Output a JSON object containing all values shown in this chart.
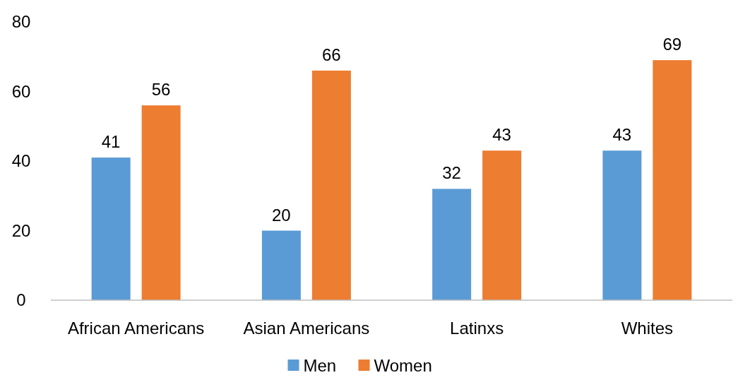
{
  "chart_data": {
    "type": "bar",
    "categories": [
      "African Americans",
      "Asian Americans",
      "Latinxs",
      "Whites"
    ],
    "series": [
      {
        "name": "Men",
        "color": "#5b9bd5",
        "values": [
          41,
          20,
          32,
          43
        ]
      },
      {
        "name": "Women",
        "color": "#ed7d31",
        "values": [
          56,
          66,
          43,
          69
        ]
      }
    ],
    "ylim": [
      0,
      80
    ],
    "yticks": [
      0,
      20,
      40,
      60,
      80
    ],
    "grid": false,
    "data_labels": true,
    "legend": "bottom"
  }
}
